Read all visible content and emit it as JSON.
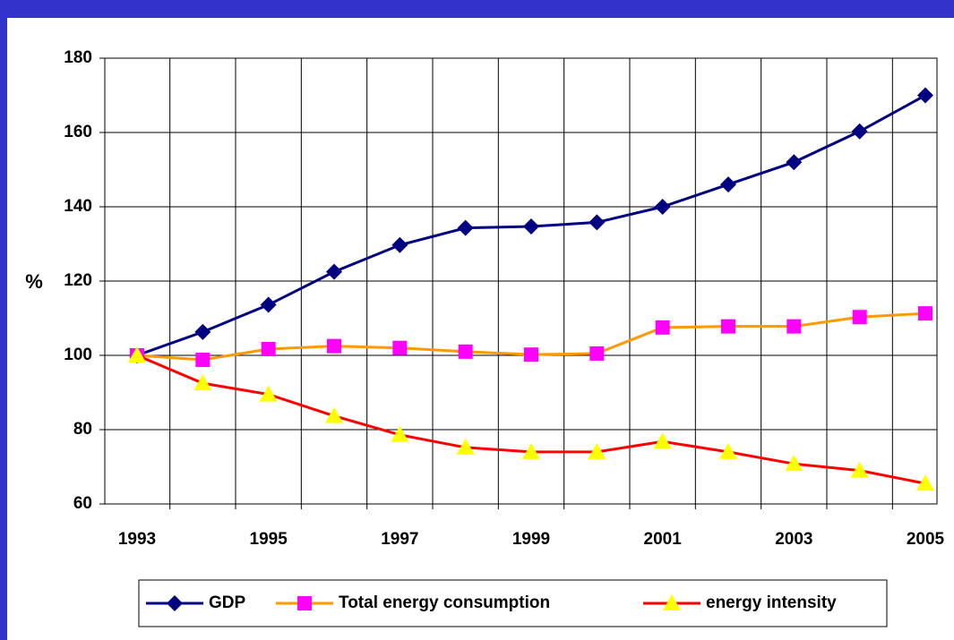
{
  "chart_data": {
    "type": "line",
    "ylabel": "%",
    "categories": [
      "1993",
      null,
      "1995",
      null,
      "1997",
      null,
      "1999",
      null,
      "2001",
      null,
      "2003",
      null,
      "2005"
    ],
    "series": [
      {
        "name": "GDP",
        "color": "#000080",
        "marker_color": "#000080",
        "marker": "diamond",
        "values": [
          100,
          106.3,
          113.6,
          122.5,
          129.7,
          134.3,
          134.7,
          135.8,
          140,
          146,
          152,
          160.3,
          170
        ]
      },
      {
        "name": "Total energy consumption",
        "color": "#ff9900",
        "marker_color": "#ff00ff",
        "marker": "square",
        "values": [
          100,
          98.8,
          101.7,
          102.5,
          102,
          101,
          100.2,
          100.5,
          107.5,
          107.8,
          107.8,
          110.3,
          111.3
        ]
      },
      {
        "name": "energy intensity",
        "color": "#ff0000",
        "marker_color": "#ffff00",
        "marker": "triangle",
        "values": [
          100,
          92.5,
          89.5,
          83.7,
          78.6,
          75.2,
          74,
          74,
          76.8,
          74,
          70.8,
          69,
          65.5
        ]
      }
    ],
    "ylim": [
      60,
      180
    ],
    "yticks": [
      60,
      80,
      100,
      120,
      140,
      160,
      180
    ],
    "grid": true
  }
}
